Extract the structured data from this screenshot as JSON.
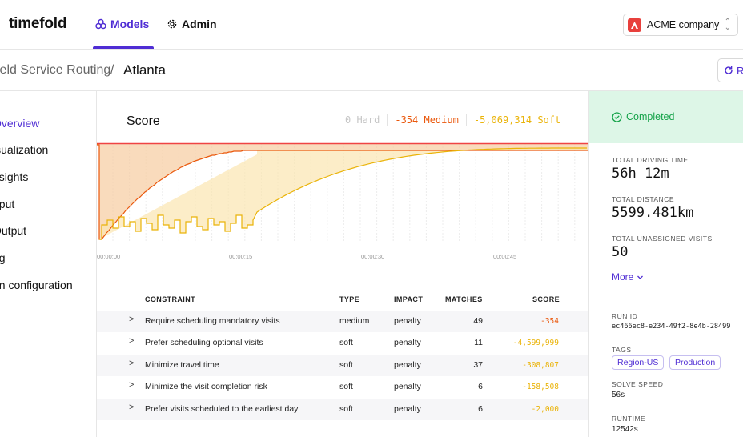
{
  "header": {
    "brand": "timefold",
    "nav": [
      {
        "label": "Models",
        "icon": "models-icon",
        "active": true
      },
      {
        "label": "Admin",
        "icon": "gear-icon",
        "active": false
      }
    ],
    "company": "ACME company",
    "company_logo_letter": "A",
    "accent_color": "#4f2dd4"
  },
  "breadcrumb": {
    "parent": "ield Service Routing",
    "separator": "/",
    "current": "Atlanta",
    "action_label": "R"
  },
  "sidebar": {
    "items": [
      {
        "label": "Overview",
        "active": true
      },
      {
        "label": "isualization"
      },
      {
        "label": "nsights"
      },
      {
        "label": "nput"
      },
      {
        "label": "Output"
      },
      {
        "label": "og"
      },
      {
        "label": "un configuration"
      }
    ]
  },
  "score": {
    "title": "Score",
    "hard": "0 Hard",
    "medium": "-354 Medium",
    "soft": "-5,069,314 Soft",
    "colors": {
      "hard": "#c7c7c7",
      "medium": "#ea580c",
      "soft": "#eab308"
    },
    "time_ticks": [
      "00:00:00",
      "00:00:15",
      "00:00:30",
      "00:00:45"
    ]
  },
  "table": {
    "headers": {
      "constraint": "CONSTRAINT",
      "type": "TYPE",
      "impact": "IMPACT",
      "matches": "MATCHES",
      "score": "SCORE"
    },
    "rows": [
      {
        "constraint": "Require scheduling mandatory visits",
        "type": "medium",
        "impact": "penalty",
        "matches": "49",
        "score": "-354"
      },
      {
        "constraint": "Prefer scheduling optional visits",
        "type": "soft",
        "impact": "penalty",
        "matches": "11",
        "score": "-4,599,999"
      },
      {
        "constraint": "Minimize travel time",
        "type": "soft",
        "impact": "penalty",
        "matches": "37",
        "score": "-308,807"
      },
      {
        "constraint": "Minimize the visit completion risk",
        "type": "soft",
        "impact": "penalty",
        "matches": "6",
        "score": "-158,508"
      },
      {
        "constraint": "Prefer visits scheduled to the earliest day",
        "type": "soft",
        "impact": "penalty",
        "matches": "6",
        "score": "-2,000"
      }
    ]
  },
  "summary": {
    "status": "Completed",
    "status_color": "#16a34a",
    "stats": [
      {
        "label": "TOTAL DRIVING TIME",
        "value": "56h 12m"
      },
      {
        "label": "TOTAL DISTANCE",
        "value": "5599.481km"
      },
      {
        "label": "TOTAL UNASSIGNED VISITS",
        "value": "50"
      }
    ],
    "more_label": "More",
    "run_id_label": "RUN ID",
    "run_id": "ec466ec8-e234-49f2-8e4b-28499",
    "tags_label": "TAGS",
    "tags": [
      "Region-US",
      "Production"
    ],
    "solve_speed_label": "SOLVE SPEED",
    "solve_speed": "56s",
    "runtime_label": "RUNTIME",
    "runtime": "12542s"
  }
}
